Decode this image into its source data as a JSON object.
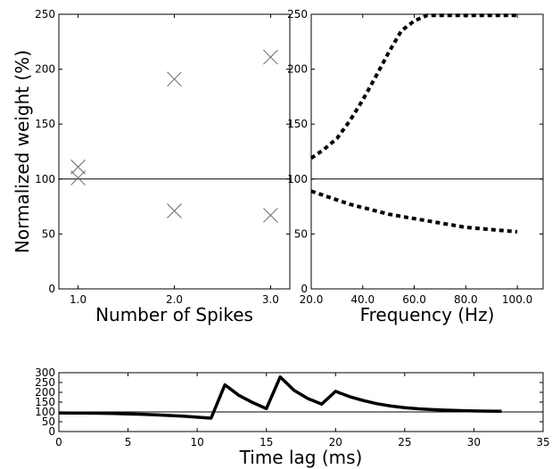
{
  "chart_data": [
    {
      "type": "scatter",
      "xlabel": "Number of Spikes",
      "ylabel": "Normalized weight (%)",
      "xlim": [
        0.8,
        3.2
      ],
      "ylim": [
        0,
        250
      ],
      "xticks": [
        "1.0",
        "2.0",
        "3.0"
      ],
      "yticks": [
        "0",
        "50",
        "100",
        "150",
        "200",
        "250"
      ],
      "marker": "x",
      "reference_line": 100,
      "points": [
        {
          "x": 1.0,
          "y": 111
        },
        {
          "x": 1.0,
          "y": 101
        },
        {
          "x": 2.0,
          "y": 191
        },
        {
          "x": 2.0,
          "y": 71
        },
        {
          "x": 3.0,
          "y": 211
        },
        {
          "x": 3.0,
          "y": 67
        }
      ]
    },
    {
      "type": "line",
      "xlabel": "Frequency (Hz)",
      "ylabel": "",
      "xlim": [
        20,
        110
      ],
      "ylim": [
        0,
        250
      ],
      "xticks": [
        "20.0",
        "40.0",
        "60.0",
        "80.0",
        "100.0"
      ],
      "yticks": [
        "0",
        "50",
        "100",
        "150",
        "200",
        "250"
      ],
      "line_style": "dotted",
      "reference_line": 100,
      "series": [
        {
          "x": [
            20,
            25,
            30,
            35,
            40,
            45,
            50,
            55,
            60,
            65,
            70,
            75,
            80,
            85,
            90,
            95,
            100
          ],
          "values": [
            119,
            127,
            137,
            153,
            172,
            193,
            215,
            235,
            244,
            249,
            249,
            249,
            249,
            249,
            249,
            249,
            249
          ]
        },
        {
          "x": [
            20,
            25,
            30,
            35,
            40,
            45,
            50,
            55,
            60,
            65,
            70,
            75,
            80,
            85,
            90,
            95,
            100
          ],
          "values": [
            89,
            85,
            81,
            77,
            74,
            71,
            68,
            66,
            64,
            62,
            60,
            58,
            56,
            55,
            54,
            53,
            52
          ]
        }
      ]
    },
    {
      "type": "line",
      "xlabel": "Time lag (ms)",
      "ylabel": "",
      "xlim": [
        0,
        35
      ],
      "ylim": [
        0,
        300
      ],
      "xticks": [
        "0",
        "5",
        "10",
        "15",
        "20",
        "25",
        "30",
        "35"
      ],
      "yticks": [
        "0",
        "50",
        "100",
        "150",
        "200",
        "250",
        "300"
      ],
      "reference_line": 100,
      "series": [
        {
          "x": [
            0,
            1,
            2,
            3,
            4,
            5,
            6,
            7,
            8,
            9,
            10,
            11,
            12,
            13,
            14,
            15,
            16,
            17,
            18,
            19,
            20,
            21,
            22,
            23,
            24,
            25,
            26,
            27,
            28,
            29,
            30,
            31,
            32
          ],
          "values": [
            95,
            94,
            94,
            93,
            92,
            90,
            88,
            85,
            82,
            78,
            73,
            68,
            238,
            185,
            148,
            117,
            278,
            210,
            168,
            140,
            205,
            178,
            158,
            142,
            130,
            122,
            116,
            112,
            109,
            107,
            105,
            104,
            103
          ]
        }
      ]
    }
  ]
}
